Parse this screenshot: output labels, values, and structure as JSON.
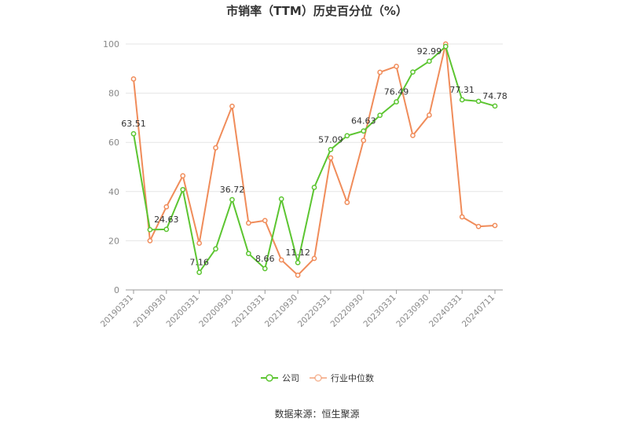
{
  "chart_data": {
    "type": "line",
    "title": "市销率（TTM）历史百分位（%）",
    "xlabel": "",
    "ylabel": "",
    "ylim": [
      0,
      100
    ],
    "yticks": [
      0,
      20,
      40,
      60,
      80,
      100
    ],
    "grid": true,
    "legend_position": "bottom",
    "x_tick_labels": [
      "20190331",
      "20190930",
      "20200331",
      "20200930",
      "20210331",
      "20210930",
      "20220331",
      "20220930",
      "20230331",
      "20230930",
      "20240331",
      "20240711"
    ],
    "x_tick_index": [
      0,
      2,
      4,
      6,
      8,
      10,
      12,
      14,
      16,
      18,
      20,
      22
    ],
    "series": [
      {
        "name": "公司",
        "color": "#5cc531",
        "values": [
          63.51,
          24.5,
          24.63,
          40.8,
          7.16,
          16.7,
          36.72,
          14.8,
          8.66,
          37.0,
          11.12,
          41.7,
          57.09,
          62.7,
          64.63,
          71.0,
          76.49,
          88.6,
          92.99,
          99.0,
          77.31,
          76.7,
          74.78
        ],
        "data_labels": [
          {
            "index": 0,
            "text": "63.51"
          },
          {
            "index": 2,
            "text": "24.63"
          },
          {
            "index": 4,
            "text": "7.16"
          },
          {
            "index": 6,
            "text": "36.72"
          },
          {
            "index": 8,
            "text": "8.66"
          },
          {
            "index": 10,
            "text": "11.12"
          },
          {
            "index": 12,
            "text": "57.09"
          },
          {
            "index": 14,
            "text": "64.63"
          },
          {
            "index": 16,
            "text": "76.49"
          },
          {
            "index": 18,
            "text": "92.99"
          },
          {
            "index": 20,
            "text": "77.31"
          },
          {
            "index": 22,
            "text": "74.78"
          }
        ]
      },
      {
        "name": "行业中位数",
        "color": "#f08c5a",
        "values": [
          85.8,
          20.0,
          33.8,
          46.4,
          19.0,
          57.8,
          74.7,
          27.2,
          28.2,
          12.2,
          6.0,
          12.8,
          53.7,
          35.6,
          60.8,
          88.5,
          90.9,
          62.8,
          71.1,
          100.0,
          29.7,
          25.8,
          26.2
        ]
      }
    ]
  },
  "source": "数据来源：恒生聚源"
}
